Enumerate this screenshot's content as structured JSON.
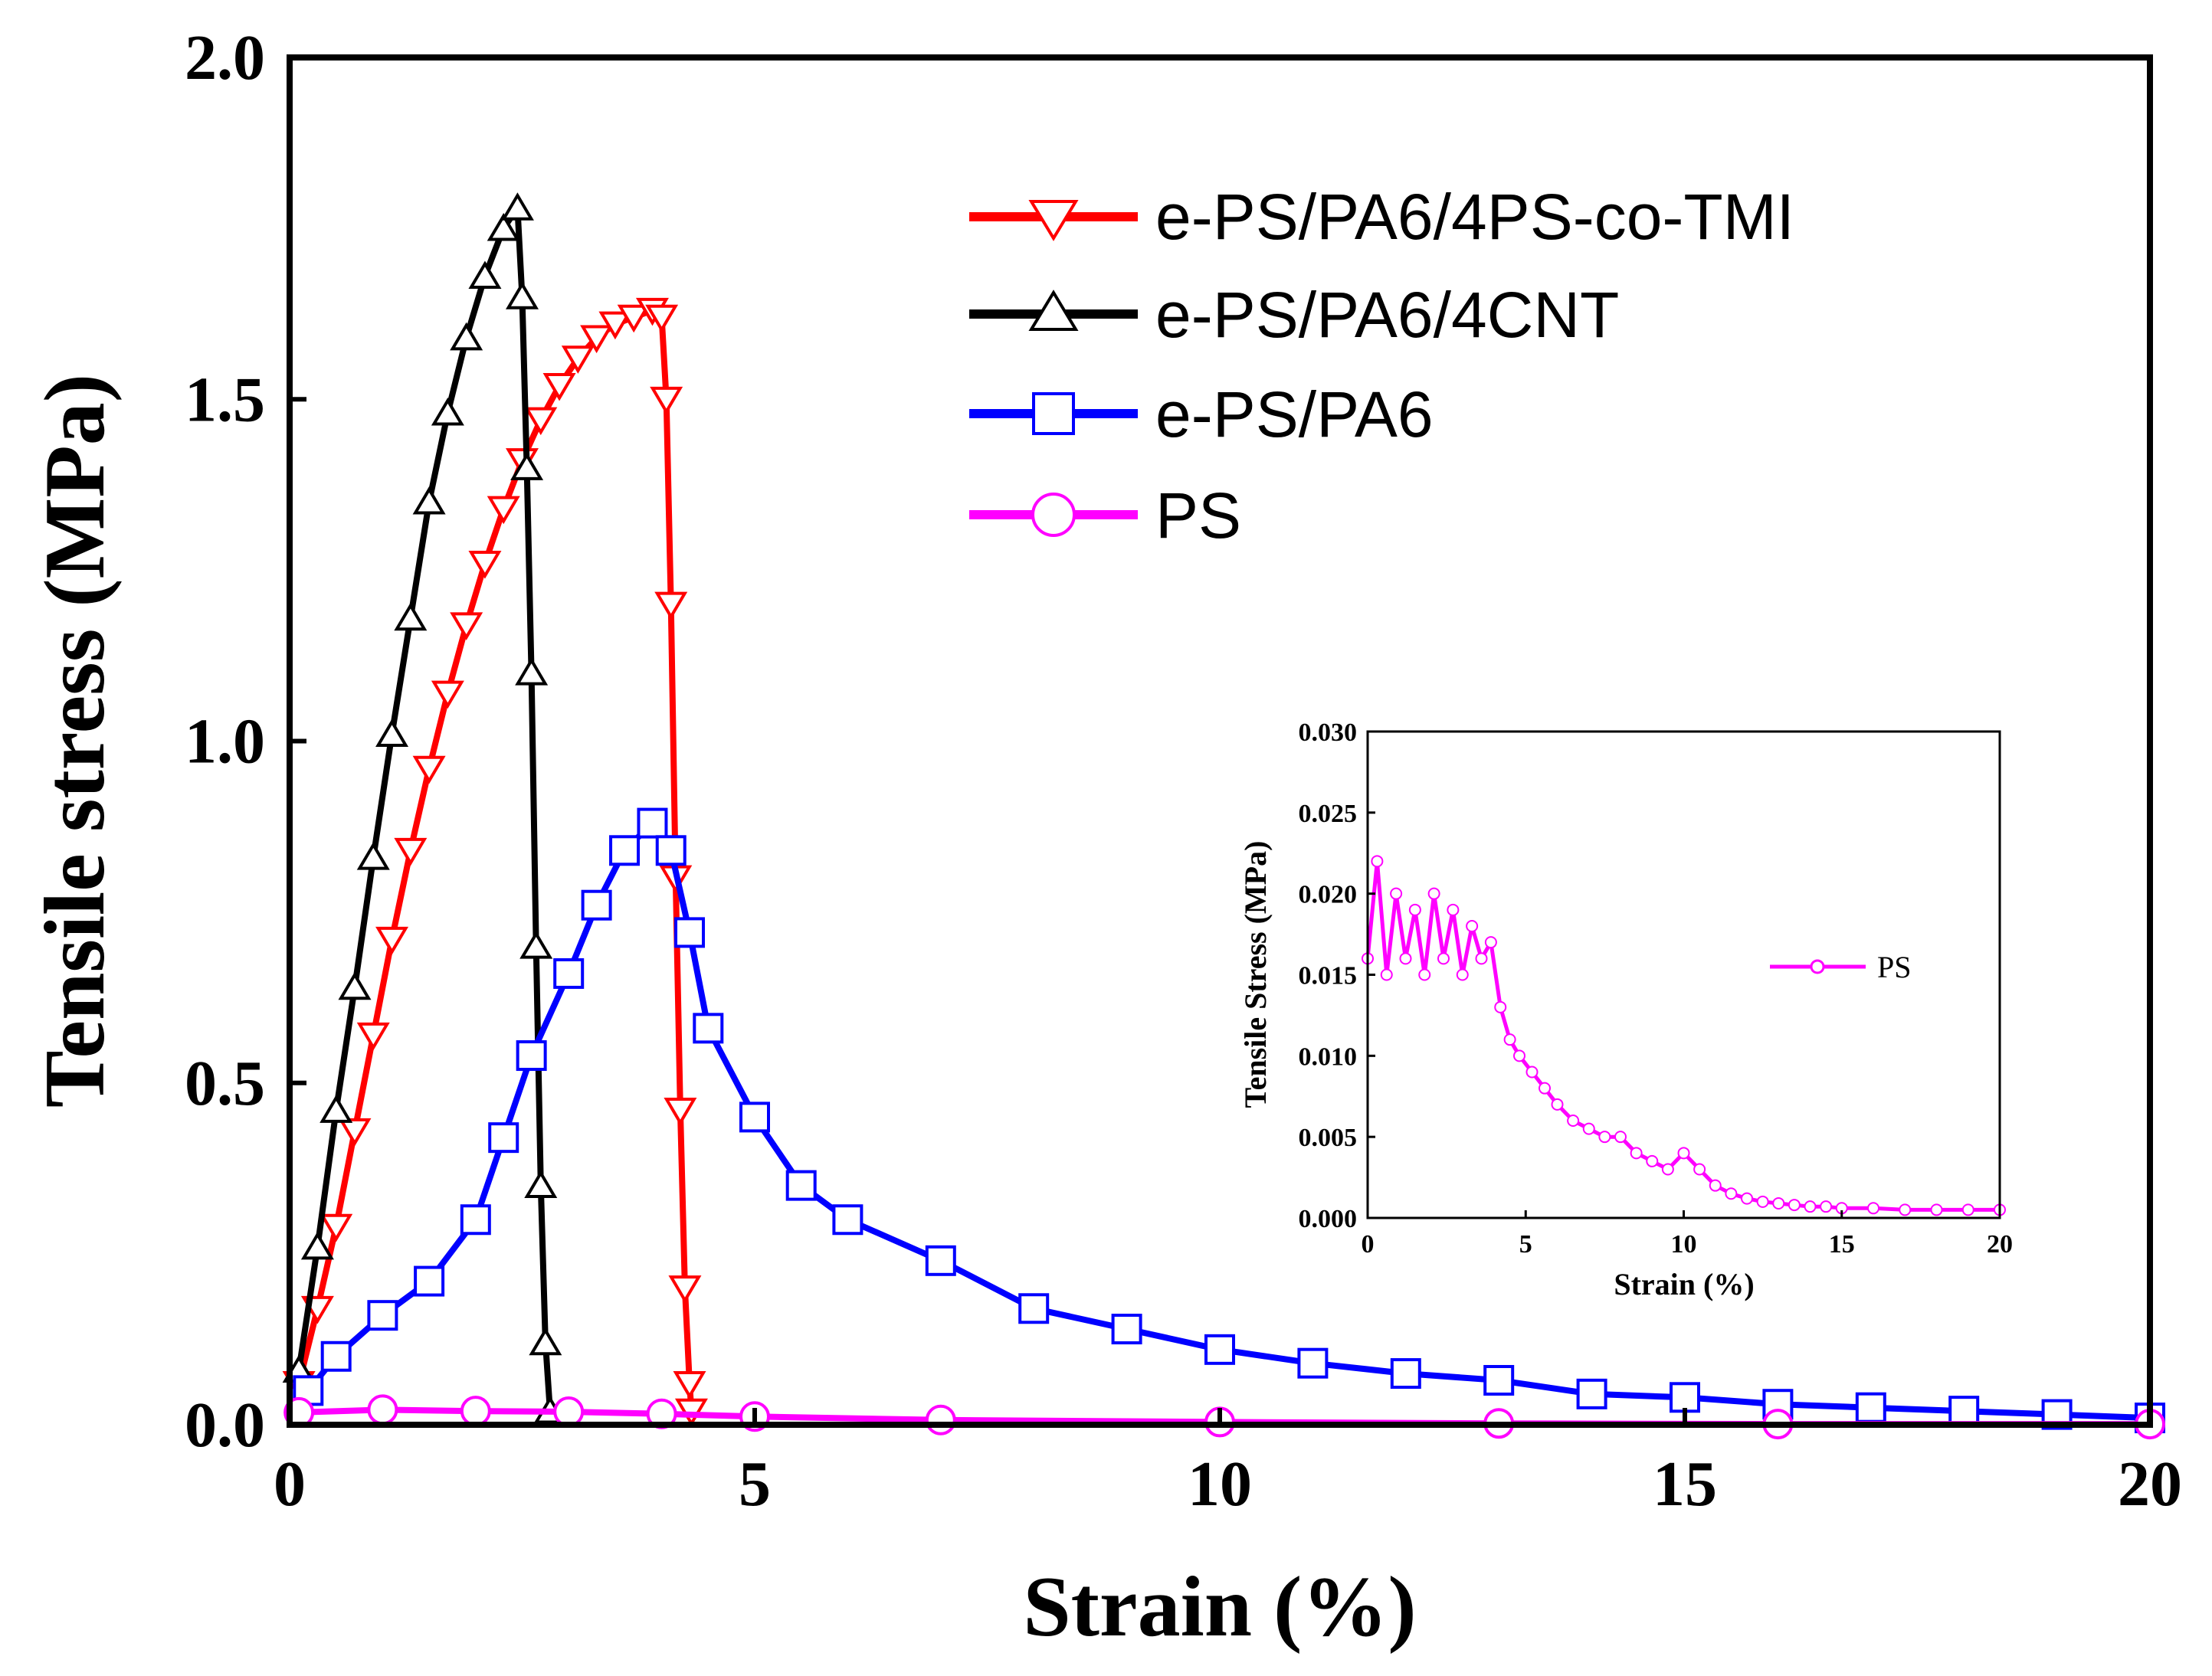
{
  "chart_data": [
    {
      "type": "line",
      "xlabel": "Strain (%)",
      "ylabel": "Tensile stress (MPa)",
      "xlim": [
        0,
        20
      ],
      "ylim": [
        0,
        2.0
      ],
      "xticks": [
        0,
        5,
        10,
        15,
        20
      ],
      "xtick_labels": [
        "0",
        "5",
        "10",
        "15",
        "20"
      ],
      "yticks": [
        0,
        0.5,
        1.0,
        1.5,
        2.0
      ],
      "ytick_labels": [
        "0.0",
        "0.5",
        "1.0",
        "1.5",
        "2.0"
      ],
      "grid": false,
      "legend_position": "top-right",
      "series": [
        {
          "name": "e-PS/PA6/4PS-co-TMI",
          "color": "#ff0000",
          "marker": "triangle-down",
          "x": [
            0.1,
            0.3,
            0.5,
            0.7,
            0.9,
            1.1,
            1.3,
            1.5,
            1.7,
            1.9,
            2.1,
            2.3,
            2.5,
            2.7,
            2.9,
            3.1,
            3.3,
            3.5,
            3.7,
            3.9,
            4.0,
            4.05,
            4.1,
            4.15,
            4.2,
            4.25,
            4.3,
            4.32
          ],
          "y": [
            0.06,
            0.17,
            0.29,
            0.43,
            0.57,
            0.71,
            0.84,
            0.96,
            1.07,
            1.17,
            1.26,
            1.34,
            1.41,
            1.47,
            1.52,
            1.56,
            1.59,
            1.61,
            1.62,
            1.63,
            1.62,
            1.5,
            1.2,
            0.8,
            0.46,
            0.2,
            0.06,
            0.02
          ]
        },
        {
          "name": "e-PS/PA6/4CNT",
          "color": "#000000",
          "marker": "triangle-up",
          "x": [
            0.1,
            0.3,
            0.5,
            0.7,
            0.9,
            1.1,
            1.3,
            1.5,
            1.7,
            1.9,
            2.1,
            2.3,
            2.45,
            2.5,
            2.55,
            2.6,
            2.65,
            2.7,
            2.75,
            2.8
          ],
          "y": [
            0.08,
            0.26,
            0.46,
            0.64,
            0.83,
            1.01,
            1.18,
            1.35,
            1.48,
            1.59,
            1.68,
            1.75,
            1.78,
            1.65,
            1.4,
            1.1,
            0.7,
            0.35,
            0.12,
            0.02
          ]
        },
        {
          "name": "e-PS/PA6",
          "color": "#0000ff",
          "marker": "square",
          "x": [
            0.2,
            0.5,
            1.0,
            1.5,
            2.0,
            2.3,
            2.6,
            3.0,
            3.3,
            3.6,
            3.9,
            4.1,
            4.3,
            4.5,
            5.0,
            5.5,
            6.0,
            7.0,
            8.0,
            9.0,
            10.0,
            11.0,
            12.0,
            13.0,
            14.0,
            15.0,
            16.0,
            17.0,
            18.0,
            19.0,
            20.0
          ],
          "y": [
            0.05,
            0.1,
            0.16,
            0.21,
            0.3,
            0.42,
            0.54,
            0.66,
            0.76,
            0.84,
            0.88,
            0.84,
            0.72,
            0.58,
            0.45,
            0.35,
            0.3,
            0.24,
            0.17,
            0.14,
            0.11,
            0.09,
            0.075,
            0.065,
            0.045,
            0.04,
            0.03,
            0.025,
            0.02,
            0.015,
            0.01
          ]
        },
        {
          "name": "PS",
          "color": "#ff00ff",
          "marker": "circle",
          "x": [
            0.1,
            1.0,
            2.0,
            3.0,
            4.0,
            5.0,
            7.0,
            10.0,
            13.0,
            16.0,
            20.0
          ],
          "y": [
            0.018,
            0.022,
            0.02,
            0.019,
            0.016,
            0.012,
            0.007,
            0.004,
            0.002,
            0.001,
            0.001
          ]
        }
      ]
    },
    {
      "type": "line",
      "xlabel": "Strain (%)",
      "ylabel": "Tensile Stress (MPa)",
      "xlim": [
        0,
        20
      ],
      "ylim": [
        0,
        0.03
      ],
      "xticks": [
        0,
        5,
        10,
        15,
        20
      ],
      "xtick_labels": [
        "0",
        "5",
        "10",
        "15",
        "20"
      ],
      "yticks": [
        0,
        0.005,
        0.01,
        0.015,
        0.02,
        0.025,
        0.03
      ],
      "ytick_labels": [
        "0.000",
        "0.005",
        "0.010",
        "0.015",
        "0.020",
        "0.025",
        "0.030"
      ],
      "grid": false,
      "legend_position": "middle-right",
      "series": [
        {
          "name": "PS",
          "color": "#ff00ff",
          "marker": "circle",
          "x": [
            0,
            0.3,
            0.6,
            0.9,
            1.2,
            1.5,
            1.8,
            2.1,
            2.4,
            2.7,
            3.0,
            3.3,
            3.6,
            3.9,
            4.2,
            4.5,
            4.8,
            5.2,
            5.6,
            6.0,
            6.5,
            7.0,
            7.5,
            8.0,
            8.5,
            9.0,
            9.5,
            10.0,
            10.5,
            11.0,
            11.5,
            12.0,
            12.5,
            13.0,
            13.5,
            14.0,
            14.5,
            15.0,
            16.0,
            17.0,
            18.0,
            19.0,
            20.0
          ],
          "y": [
            0.016,
            0.022,
            0.015,
            0.02,
            0.016,
            0.019,
            0.015,
            0.02,
            0.016,
            0.019,
            0.015,
            0.018,
            0.016,
            0.017,
            0.013,
            0.011,
            0.01,
            0.009,
            0.008,
            0.007,
            0.006,
            0.0055,
            0.005,
            0.005,
            0.004,
            0.0035,
            0.003,
            0.004,
            0.003,
            0.002,
            0.0015,
            0.0012,
            0.001,
            0.0009,
            0.0008,
            0.0007,
            0.0007,
            0.0006,
            0.0006,
            0.0005,
            0.0005,
            0.0005,
            0.0005
          ]
        }
      ]
    }
  ]
}
